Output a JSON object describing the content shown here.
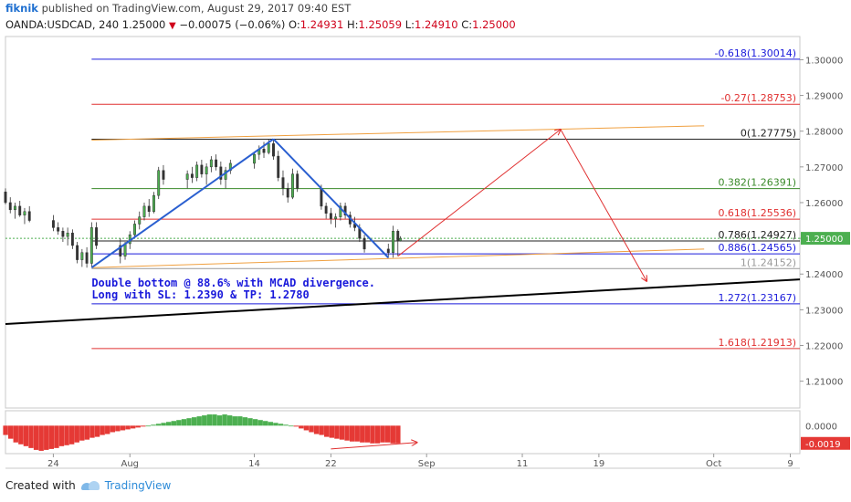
{
  "publisher": {
    "user": "fiknik",
    "published_text": "published on TradingView.com, August 29, 2017 09:40 EST"
  },
  "ticker": {
    "symbol_interval": "OANDA:USDCAD, 240",
    "last": "1.25000",
    "change_arrow": "▼",
    "change": "−0.00075 (−0.06%)",
    "o_label": "O:",
    "o": "1.24931",
    "h_label": "H:",
    "h": "1.25059",
    "l_label": "L:",
    "l": "1.24910",
    "c_label": "C:",
    "c": "1.25000"
  },
  "footer": {
    "created_with": "Created with",
    "brand": "TradingView"
  },
  "chart_data": {
    "type": "candlestick",
    "symbol": "OANDA:USDCAD",
    "interval": "240",
    "ylim": [
      1.2025,
      1.3065
    ],
    "xlim": [
      "2017-07-19",
      "2017-10-10"
    ],
    "price_ticks": [
      "1.30000",
      "1.29000",
      "1.28000",
      "1.27000",
      "1.26000",
      "1.25000",
      "1.24000",
      "1.23000",
      "1.22000",
      "1.21000"
    ],
    "x_ticks": [
      {
        "label": "24",
        "date": "2017-07-24"
      },
      {
        "label": "Aug",
        "date": "2017-08-01"
      },
      {
        "label": "14",
        "date": "2017-08-14"
      },
      {
        "label": "22",
        "date": "2017-08-22"
      },
      {
        "label": "Sep",
        "date": "2017-09-01"
      },
      {
        "label": "11",
        "date": "2017-09-11"
      },
      {
        "label": "19",
        "date": "2017-09-19"
      },
      {
        "label": "Oct",
        "date": "2017-10-01"
      },
      {
        "label": "9",
        "date": "2017-10-09"
      }
    ],
    "current_price": {
      "label": "1.25000",
      "value": 1.25,
      "color": "#4caf50"
    },
    "fib_levels": [
      {
        "label": "-0.618",
        "value": 1.30014,
        "text": "-0.618(1.30014)",
        "color": "#1a1adb"
      },
      {
        "label": "-0.27",
        "value": 1.28753,
        "text": "-0.27(1.28753)",
        "color": "#e03030"
      },
      {
        "label": "0",
        "value": 1.27775,
        "text": "0(1.27775)",
        "color": "#222222"
      },
      {
        "label": "0.382",
        "value": 1.26391,
        "text": "0.382(1.26391)",
        "color": "#3a8a2a"
      },
      {
        "label": "0.618",
        "value": 1.25536,
        "text": "0.618(1.25536)",
        "color": "#e03030"
      },
      {
        "label": "0.786",
        "value": 1.24927,
        "text": "0.786(1.24927)",
        "color": "#222222"
      },
      {
        "label": "0.886",
        "value": 1.24565,
        "text": "0.886(1.24565)",
        "color": "#1a1adb"
      },
      {
        "label": "1",
        "value": 1.24152,
        "text": "1(1.24152)",
        "color": "#999999"
      },
      {
        "label": "1.272",
        "value": 1.23167,
        "text": "1.272(1.23167)",
        "color": "#1a1adb"
      },
      {
        "label": "1.618",
        "value": 1.21913,
        "text": "1.618(1.21913)",
        "color": "#e03030"
      }
    ],
    "annotation": [
      "Double bottom @ 88.6% with MCAD divergence.",
      "Long with SL: 1.2390 & TP: 1.2780"
    ],
    "pattern_lines": [
      {
        "from": [
          "2017-07-28",
          1.2418
        ],
        "to": [
          "2017-08-16",
          1.2778
        ],
        "color": "#2a5fd0"
      },
      {
        "from": [
          "2017-08-16",
          1.2778
        ],
        "to": [
          "2017-08-28",
          1.2446
        ],
        "color": "#2a5fd0"
      }
    ],
    "channel_lines": [
      {
        "from": [
          "2017-07-28",
          1.2775
        ],
        "to": [
          "2017-09-30",
          1.2815
        ],
        "color": "#f0a040"
      },
      {
        "from": [
          "2017-07-28",
          1.2418
        ],
        "to": [
          "2017-09-30",
          1.247
        ],
        "color": "#f0a040"
      },
      {
        "from": [
          "2017-07-19",
          1.226
        ],
        "to": [
          "2017-10-10",
          1.2385
        ],
        "color": "#000000"
      }
    ],
    "projection_arrows": [
      {
        "from": [
          "2017-08-29",
          1.245
        ],
        "to": [
          "2017-09-15",
          1.2805
        ],
        "color": "#e03030"
      },
      {
        "from": [
          "2017-09-15",
          1.2805
        ],
        "to": [
          "2017-09-24",
          1.238
        ],
        "color": "#e03030"
      }
    ],
    "macd": {
      "ticks": [
        {
          "label": "0.0000",
          "value": 0
        },
        {
          "label": "-0.0019",
          "value": -0.0019,
          "highlight": true
        }
      ],
      "ylim": [
        -0.003,
        0.0016
      ],
      "divergence_arrow": {
        "from": [
          "2017-08-22",
          -0.0025
        ],
        "to": [
          "2017-08-31",
          -0.0018
        ],
        "color": "#e03030"
      }
    },
    "ohlc_points": [
      [
        "2017-07-19",
        1.263,
        1.264,
        1.2595,
        1.26
      ],
      [
        "2017-07-19T12",
        1.26,
        1.2615,
        1.257,
        1.258
      ],
      [
        "2017-07-20",
        1.258,
        1.26,
        1.2555,
        1.259
      ],
      [
        "2017-07-20T12",
        1.259,
        1.2605,
        1.256,
        1.2565
      ],
      [
        "2017-07-21",
        1.2565,
        1.2585,
        1.254,
        1.2575
      ],
      [
        "2017-07-21T12",
        1.2575,
        1.259,
        1.2545,
        1.255
      ],
      [
        "2017-07-24",
        1.255,
        1.2565,
        1.252,
        1.253
      ],
      [
        "2017-07-24T12",
        1.253,
        1.2545,
        1.251,
        1.252
      ],
      [
        "2017-07-25",
        1.252,
        1.253,
        1.249,
        1.2505
      ],
      [
        "2017-07-25T12",
        1.2505,
        1.253,
        1.248,
        1.2515
      ],
      [
        "2017-07-26",
        1.2515,
        1.2525,
        1.247,
        1.248
      ],
      [
        "2017-07-26T12",
        1.248,
        1.249,
        1.243,
        1.244
      ],
      [
        "2017-07-27",
        1.244,
        1.247,
        1.242,
        1.246
      ],
      [
        "2017-07-27T12",
        1.246,
        1.2475,
        1.2418,
        1.243
      ],
      [
        "2017-07-28",
        1.243,
        1.2545,
        1.242,
        1.253
      ],
      [
        "2017-07-28T12",
        1.253,
        1.2545,
        1.247,
        1.248
      ],
      [
        "2017-07-31",
        1.248,
        1.25,
        1.243,
        1.245
      ],
      [
        "2017-07-31T12",
        1.245,
        1.249,
        1.244,
        1.2485
      ],
      [
        "2017-08-01",
        1.2485,
        1.252,
        1.247,
        1.251
      ],
      [
        "2017-08-01T12",
        1.251,
        1.255,
        1.25,
        1.254
      ],
      [
        "2017-08-02",
        1.254,
        1.2575,
        1.2525,
        1.256
      ],
      [
        "2017-08-02T12",
        1.256,
        1.26,
        1.255,
        1.259
      ],
      [
        "2017-08-03",
        1.259,
        1.261,
        1.256,
        1.2575
      ],
      [
        "2017-08-03T12",
        1.2575,
        1.263,
        1.257,
        1.262
      ],
      [
        "2017-08-04",
        1.262,
        1.27,
        1.261,
        1.269
      ],
      [
        "2017-08-04T12",
        1.269,
        1.2705,
        1.265,
        1.2665
      ],
      [
        "2017-08-07",
        1.2665,
        1.269,
        1.264,
        1.268
      ],
      [
        "2017-08-07T12",
        1.268,
        1.27,
        1.2655,
        1.267
      ],
      [
        "2017-08-08",
        1.267,
        1.2715,
        1.266,
        1.2705
      ],
      [
        "2017-08-08T12",
        1.2705,
        1.272,
        1.267,
        1.268
      ],
      [
        "2017-08-09",
        1.268,
        1.271,
        1.265,
        1.27
      ],
      [
        "2017-08-09T12",
        1.27,
        1.273,
        1.2685,
        1.272
      ],
      [
        "2017-08-10",
        1.272,
        1.2735,
        1.269,
        1.27
      ],
      [
        "2017-08-10T12",
        1.27,
        1.2715,
        1.265,
        1.2665
      ],
      [
        "2017-08-11",
        1.2665,
        1.27,
        1.264,
        1.269
      ],
      [
        "2017-08-11T12",
        1.269,
        1.272,
        1.268,
        1.271
      ],
      [
        "2017-08-14",
        1.271,
        1.274,
        1.2695,
        1.2735
      ],
      [
        "2017-08-14T12",
        1.2735,
        1.276,
        1.272,
        1.275
      ],
      [
        "2017-08-15",
        1.275,
        1.277,
        1.2725,
        1.274
      ],
      [
        "2017-08-15T12",
        1.274,
        1.2778,
        1.2735,
        1.2765
      ],
      [
        "2017-08-16",
        1.2765,
        1.2775,
        1.272,
        1.273
      ],
      [
        "2017-08-16T12",
        1.273,
        1.2745,
        1.266,
        1.267
      ],
      [
        "2017-08-17",
        1.267,
        1.269,
        1.262,
        1.264
      ],
      [
        "2017-08-17T12",
        1.264,
        1.2655,
        1.26,
        1.2615
      ],
      [
        "2017-08-18",
        1.2615,
        1.2695,
        1.261,
        1.268
      ],
      [
        "2017-08-18T12",
        1.268,
        1.269,
        1.263,
        1.264
      ],
      [
        "2017-08-21",
        1.264,
        1.265,
        1.258,
        1.259
      ],
      [
        "2017-08-21T12",
        1.259,
        1.26,
        1.2555,
        1.257
      ],
      [
        "2017-08-22",
        1.257,
        1.2585,
        1.254,
        1.2555
      ],
      [
        "2017-08-22T12",
        1.2555,
        1.257,
        1.253,
        1.256
      ],
      [
        "2017-08-23",
        1.256,
        1.26,
        1.255,
        1.259
      ],
      [
        "2017-08-23T12",
        1.259,
        1.26,
        1.2555,
        1.2565
      ],
      [
        "2017-08-24",
        1.2565,
        1.2575,
        1.253,
        1.254
      ],
      [
        "2017-08-24T12",
        1.254,
        1.256,
        1.252,
        1.253
      ],
      [
        "2017-08-25",
        1.253,
        1.254,
        1.249,
        1.25
      ],
      [
        "2017-08-25T12",
        1.25,
        1.251,
        1.246,
        1.247
      ],
      [
        "2017-08-28",
        1.247,
        1.2485,
        1.2445,
        1.246
      ],
      [
        "2017-08-28T12",
        1.246,
        1.2535,
        1.2446,
        1.252
      ],
      [
        "2017-08-29",
        1.252,
        1.2525,
        1.245,
        1.2493
      ],
      [
        "2017-08-29T06",
        1.2493,
        1.2506,
        1.2491,
        1.25
      ]
    ],
    "macd_hist": [
      -0.001,
      -0.0014,
      -0.0018,
      -0.002,
      -0.0022,
      -0.0024,
      -0.0026,
      -0.0027,
      -0.0026,
      -0.0025,
      -0.0024,
      -0.0022,
      -0.0021,
      -0.002,
      -0.0018,
      -0.0016,
      -0.0015,
      -0.0013,
      -0.0012,
      -0.001,
      -0.0009,
      -0.0007,
      -0.0006,
      -0.0005,
      -0.0004,
      -0.0003,
      -0.0002,
      -0.0001,
      0.0,
      0.0001,
      0.0002,
      0.0003,
      0.0004,
      0.0005,
      0.0006,
      0.0007,
      0.0008,
      0.0009,
      0.001,
      0.0011,
      0.0012,
      0.0012,
      0.0011,
      0.0012,
      0.0011,
      0.001,
      0.001,
      0.0009,
      0.0008,
      0.0007,
      0.0006,
      0.0005,
      0.0004,
      0.0003,
      0.0002,
      0.0001,
      0.0,
      -0.0001,
      -0.0003,
      -0.0005,
      -0.0007,
      -0.0009,
      -0.001,
      -0.0012,
      -0.0013,
      -0.0014,
      -0.0015,
      -0.0016,
      -0.0017,
      -0.0017,
      -0.0018,
      -0.0018,
      -0.0019,
      -0.0019,
      -0.0018,
      -0.0018,
      -0.0019,
      -0.0019
    ],
    "colors": {
      "up": "#53b987",
      "down": "#eb4d5c",
      "candle_body_up": "#4caf50",
      "candle_body_down": "#333333",
      "grid_border": "#b0b0b0",
      "annotation_text": "#1a1adb"
    }
  }
}
